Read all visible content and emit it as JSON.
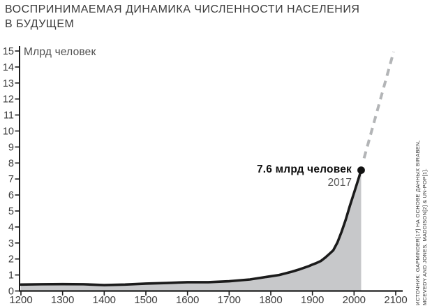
{
  "title": {
    "line1": "ВОСПРИНИМАЕМАЯ ДИНАМИКА ЧИСЛЕННОСТИ НАСЕЛЕНИЯ",
    "line2": "В БУДУЩЕМ"
  },
  "source_note": {
    "line1": "ИСТОЧНИК: GAPMINDER[17] НА ОСНОВЕ ДАННЫХ BIRABEN,",
    "line2": "MCEVEDY AND JONES, MADDISON[2] & UN-POP[1]."
  },
  "chart_data": {
    "type": "area",
    "title": "ВОСПРИНИМАЕМАЯ ДИНАМИКА ЧИСЛЕННОСТИ НАСЕЛЕНИЯ В БУДУЩЕМ",
    "unit_label": "Млрд человек",
    "xlabel": "",
    "ylabel": "Млрд человек",
    "xlim": [
      1200,
      2100
    ],
    "ylim": [
      0,
      15
    ],
    "grid": false,
    "x_ticks": [
      1200,
      1300,
      1400,
      1500,
      1600,
      1700,
      1800,
      1900,
      2000,
      2100
    ],
    "y_ticks": [
      0,
      1,
      2,
      3,
      4,
      5,
      6,
      7,
      8,
      9,
      10,
      11,
      12,
      13,
      14,
      15
    ],
    "x": [
      1200,
      1250,
      1300,
      1350,
      1400,
      1450,
      1500,
      1550,
      1600,
      1650,
      1700,
      1750,
      1800,
      1820,
      1850,
      1870,
      1890,
      1900,
      1910,
      1920,
      1930,
      1940,
      1950,
      1960,
      1970,
      1980,
      1990,
      2000,
      2010,
      2017
    ],
    "values": [
      0.4,
      0.42,
      0.43,
      0.42,
      0.37,
      0.4,
      0.46,
      0.5,
      0.55,
      0.55,
      0.61,
      0.72,
      0.92,
      1.0,
      1.2,
      1.36,
      1.54,
      1.65,
      1.75,
      1.87,
      2.07,
      2.3,
      2.54,
      3.03,
      3.7,
      4.46,
      5.33,
      6.14,
      6.96,
      7.55
    ],
    "annotation": {
      "label": "7.6 млрд человек",
      "year_label": "2017",
      "x": 2017,
      "y": 7.55
    },
    "projection": {
      "style": "dashed",
      "x": [
        2024,
        2095
      ],
      "values": [
        8.3,
        14.95
      ]
    },
    "colors": {
      "line": "#1b1b1b",
      "fill": "#c7c8ca",
      "dashed": "#b3b5b7",
      "dot": "#121212",
      "axis": "#1b1b1b",
      "tick_text": "#3a3a3a",
      "unit_text": "#4e4e4e"
    }
  }
}
